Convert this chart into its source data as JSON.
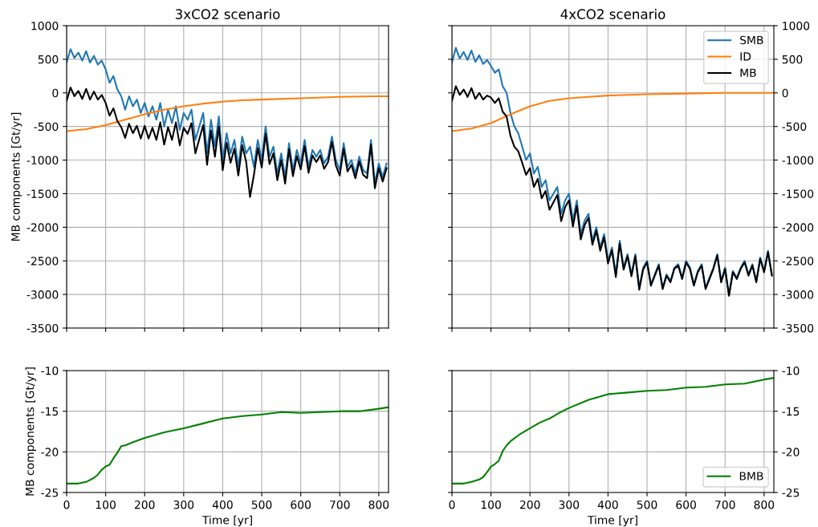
{
  "chart_data": [
    {
      "type": "line",
      "title": "3xCO2 scenario",
      "ylabel": "MB components [Gt/yr]",
      "xlim": [
        0,
        825
      ],
      "xticks": [
        0,
        100,
        200,
        300,
        400,
        500,
        600,
        700,
        800
      ],
      "ylim": [
        -3500,
        1000
      ],
      "yticks": [
        -3500,
        -3000,
        -2500,
        -2000,
        -1500,
        -1000,
        -500,
        0,
        500,
        1000
      ],
      "grid": true,
      "tick_labels": "y",
      "series": [
        {
          "color": "#1f77b4",
          "x": [
            0,
            10,
            20,
            30,
            40,
            50,
            60,
            70,
            80,
            90,
            100,
            110,
            120,
            130,
            140,
            150,
            160,
            170,
            180,
            190,
            200,
            210,
            220,
            230,
            240,
            250,
            260,
            270,
            280,
            290,
            300,
            310,
            320,
            330,
            340,
            350,
            360,
            370,
            380,
            390,
            400,
            410,
            420,
            430,
            440,
            450,
            460,
            470,
            480,
            490,
            500,
            510,
            520,
            530,
            540,
            550,
            560,
            570,
            580,
            590,
            600,
            610,
            620,
            630,
            640,
            650,
            660,
            670,
            680,
            690,
            700,
            710,
            720,
            730,
            740,
            750,
            760,
            770,
            780,
            790,
            800,
            810,
            820
          ],
          "values": [
            450,
            650,
            520,
            600,
            480,
            620,
            450,
            550,
            420,
            480,
            350,
            150,
            250,
            50,
            -50,
            -250,
            -50,
            -200,
            -100,
            -300,
            -150,
            -350,
            -200,
            -400,
            -150,
            -500,
            -250,
            -450,
            -200,
            -550,
            -300,
            -400,
            -250,
            -700,
            -500,
            -300,
            -900,
            -400,
            -800,
            -350,
            -1000,
            -600,
            -900,
            -700,
            -1100,
            -650,
            -900,
            -800,
            -1100,
            -700,
            -1000,
            -500,
            -950,
            -800,
            -1200,
            -900,
            -1250,
            -750,
            -1150,
            -850,
            -1050,
            -700,
            -1100,
            -850,
            -950,
            -850,
            -1050,
            -950,
            -650,
            -1000,
            -1150,
            -750,
            -1100,
            -1000,
            -1200,
            -950,
            -1150,
            -1200,
            -700,
            -1350,
            -1050,
            -1250,
            -1050
          ]
        },
        {
          "color": "#ff7f0e",
          "x": [
            0,
            50,
            100,
            150,
            200,
            250,
            300,
            350,
            400,
            450,
            500,
            600,
            700,
            800,
            825
          ],
          "values": [
            -570,
            -540,
            -480,
            -400,
            -320,
            -250,
            -200,
            -160,
            -130,
            -110,
            -100,
            -80,
            -60,
            -50,
            -50
          ]
        },
        {
          "color": "#000000",
          "x": [
            0,
            10,
            20,
            30,
            40,
            50,
            60,
            70,
            80,
            90,
            100,
            110,
            120,
            130,
            140,
            150,
            160,
            170,
            180,
            190,
            200,
            210,
            220,
            230,
            240,
            250,
            260,
            270,
            280,
            290,
            300,
            310,
            320,
            330,
            340,
            350,
            360,
            370,
            380,
            390,
            400,
            410,
            420,
            430,
            440,
            450,
            460,
            470,
            480,
            490,
            500,
            510,
            520,
            530,
            540,
            550,
            560,
            570,
            580,
            590,
            600,
            610,
            620,
            630,
            640,
            650,
            660,
            670,
            680,
            690,
            700,
            710,
            720,
            730,
            740,
            750,
            760,
            770,
            780,
            790,
            800,
            810,
            820
          ],
          "values": [
            -120,
            80,
            -50,
            30,
            -90,
            60,
            -100,
            20,
            -100,
            -30,
            -150,
            -340,
            -230,
            -420,
            -510,
            -670,
            -460,
            -600,
            -490,
            -680,
            -490,
            -680,
            -520,
            -700,
            -440,
            -770,
            -510,
            -700,
            -440,
            -780,
            -520,
            -610,
            -450,
            -900,
            -690,
            -480,
            -1070,
            -560,
            -950,
            -500,
            -1150,
            -740,
            -1040,
            -830,
            -1230,
            -780,
            -1020,
            -1550,
            -1220,
            -820,
            -1110,
            -610,
            -1060,
            -900,
            -1300,
            -1000,
            -1350,
            -840,
            -1240,
            -940,
            -1140,
            -790,
            -1190,
            -930,
            -1030,
            -930,
            -1130,
            -1030,
            -730,
            -1080,
            -1230,
            -830,
            -1170,
            -1070,
            -1270,
            -1020,
            -1220,
            -1270,
            -770,
            -1420,
            -1120,
            -1320,
            -1120
          ]
        }
      ]
    },
    {
      "type": "line",
      "title": "4xCO2 scenario",
      "xlim": [
        0,
        825
      ],
      "xticks": [
        0,
        100,
        200,
        300,
        400,
        500,
        600,
        700,
        800
      ],
      "ylim": [
        -3500,
        1000
      ],
      "yticks": [
        -3500,
        -3000,
        -2500,
        -2000,
        -1500,
        -1000,
        -500,
        0,
        500,
        1000
      ],
      "grid": true,
      "tick_labels": "y",
      "legend": "top right",
      "series": [
        {
          "name": "SMB",
          "color": "#1f77b4",
          "x": [
            0,
            10,
            20,
            30,
            40,
            50,
            60,
            70,
            80,
            90,
            100,
            110,
            120,
            130,
            140,
            150,
            160,
            170,
            180,
            190,
            200,
            210,
            220,
            230,
            240,
            250,
            260,
            270,
            280,
            290,
            300,
            310,
            320,
            330,
            340,
            350,
            360,
            370,
            380,
            390,
            400,
            410,
            420,
            430,
            440,
            450,
            460,
            470,
            480,
            490,
            500,
            510,
            520,
            530,
            540,
            550,
            560,
            570,
            580,
            590,
            600,
            610,
            620,
            630,
            640,
            650,
            660,
            670,
            680,
            690,
            700,
            710,
            720,
            730,
            740,
            750,
            760,
            770,
            780,
            790,
            800,
            810,
            820
          ],
          "values": [
            450,
            670,
            510,
            610,
            490,
            630,
            460,
            560,
            430,
            490,
            400,
            300,
            350,
            100,
            0,
            -300,
            -500,
            -600,
            -800,
            -1000,
            -900,
            -1200,
            -1100,
            -1400,
            -1300,
            -1600,
            -1500,
            -1400,
            -1800,
            -1600,
            -1500,
            -1900,
            -1600,
            -2100,
            -1900,
            -1800,
            -2200,
            -2000,
            -2300,
            -2100,
            -2500,
            -2300,
            -2700,
            -2200,
            -2600,
            -2400,
            -2700,
            -2400,
            -2900,
            -2600,
            -2500,
            -2850,
            -2700,
            -2550,
            -2900,
            -2700,
            -2800,
            -2600,
            -2550,
            -2750,
            -2500,
            -2600,
            -2850,
            -2650,
            -2550,
            -2900,
            -2750,
            -2600,
            -2400,
            -2800,
            -2600,
            -3000,
            -2650,
            -2750,
            -2600,
            -2500,
            -2700,
            -2550,
            -2800,
            -2450,
            -2650,
            -2350,
            -2700
          ]
        },
        {
          "name": "ID",
          "color": "#ff7f0e",
          "x": [
            0,
            50,
            100,
            150,
            200,
            250,
            300,
            350,
            400,
            500,
            600,
            700,
            800,
            825
          ],
          "values": [
            -570,
            -530,
            -450,
            -320,
            -200,
            -120,
            -80,
            -60,
            -40,
            -20,
            -10,
            0,
            0,
            0
          ]
        },
        {
          "name": "MB",
          "color": "#000000",
          "x": [
            0,
            10,
            20,
            30,
            40,
            50,
            60,
            70,
            80,
            90,
            100,
            110,
            120,
            130,
            140,
            150,
            160,
            170,
            180,
            190,
            200,
            210,
            220,
            230,
            240,
            250,
            260,
            270,
            280,
            290,
            300,
            310,
            320,
            330,
            340,
            350,
            360,
            370,
            380,
            390,
            400,
            410,
            420,
            430,
            440,
            450,
            460,
            470,
            480,
            490,
            500,
            510,
            520,
            530,
            540,
            550,
            560,
            570,
            580,
            590,
            600,
            610,
            620,
            630,
            640,
            650,
            660,
            670,
            680,
            690,
            700,
            710,
            720,
            730,
            740,
            750,
            760,
            770,
            780,
            790,
            800,
            810,
            820
          ],
          "values": [
            -120,
            100,
            -30,
            50,
            -60,
            70,
            -90,
            0,
            -100,
            -40,
            -70,
            -150,
            -80,
            -280,
            -350,
            -640,
            -800,
            -870,
            -1040,
            -1220,
            -1120,
            -1400,
            -1280,
            -1570,
            -1460,
            -1740,
            -1630,
            -1520,
            -1910,
            -1700,
            -1600,
            -1990,
            -1680,
            -2180,
            -1970,
            -1860,
            -2260,
            -2050,
            -2350,
            -2150,
            -2540,
            -2340,
            -2740,
            -2240,
            -2630,
            -2430,
            -2730,
            -2430,
            -2930,
            -2630,
            -2520,
            -2870,
            -2720,
            -2570,
            -2920,
            -2720,
            -2820,
            -2620,
            -2570,
            -2770,
            -2520,
            -2620,
            -2870,
            -2670,
            -2570,
            -2920,
            -2770,
            -2620,
            -2420,
            -2820,
            -2620,
            -3020,
            -2670,
            -2770,
            -2620,
            -2520,
            -2720,
            -2570,
            -2820,
            -2470,
            -2670,
            -2370,
            -2720
          ]
        }
      ]
    },
    {
      "type": "line",
      "xlabel": "Time [yr]",
      "ylabel": "MB components [Gt/yr]",
      "xlim": [
        0,
        825
      ],
      "xticks": [
        0,
        100,
        200,
        300,
        400,
        500,
        600,
        700,
        800
      ],
      "ylim": [
        -25,
        -10
      ],
      "yticks": [
        -25,
        -20,
        -15,
        -10
      ],
      "grid": true,
      "series": [
        {
          "color": "#008000",
          "x": [
            0,
            30,
            50,
            70,
            80,
            90,
            100,
            110,
            120,
            130,
            140,
            150,
            170,
            200,
            250,
            300,
            350,
            400,
            450,
            500,
            550,
            600,
            650,
            700,
            750,
            800,
            825
          ],
          "values": [
            -23.9,
            -23.9,
            -23.7,
            -23.2,
            -22.8,
            -22.2,
            -21.8,
            -21.6,
            -20.8,
            -20.1,
            -19.3,
            -19.2,
            -18.8,
            -18.3,
            -17.6,
            -17.1,
            -16.5,
            -15.9,
            -15.6,
            -15.4,
            -15.1,
            -15.2,
            -15.1,
            -15.0,
            -15.0,
            -14.7,
            -14.5
          ]
        }
      ]
    },
    {
      "type": "line",
      "xlabel": "Time [yr]",
      "xlim": [
        0,
        825
      ],
      "xticks": [
        0,
        100,
        200,
        300,
        400,
        500,
        600,
        700,
        800
      ],
      "ylim": [
        -25,
        -10
      ],
      "yticks": [
        -25,
        -20,
        -15,
        -10
      ],
      "grid": true,
      "legend": "bottom right",
      "series": [
        {
          "name": "BMB",
          "color": "#008000",
          "x": [
            0,
            30,
            50,
            70,
            80,
            90,
            100,
            110,
            120,
            130,
            140,
            150,
            175,
            200,
            225,
            250,
            275,
            300,
            350,
            400,
            450,
            500,
            550,
            600,
            650,
            700,
            750,
            800,
            825
          ],
          "values": [
            -23.9,
            -23.9,
            -23.7,
            -23.4,
            -23.1,
            -22.5,
            -21.8,
            -21.5,
            -21.1,
            -19.9,
            -19.2,
            -18.7,
            -17.8,
            -17.1,
            -16.4,
            -15.9,
            -15.2,
            -14.6,
            -13.6,
            -12.9,
            -12.7,
            -12.5,
            -12.4,
            -12.1,
            -12.0,
            -11.7,
            -11.6,
            -11.1,
            -10.9
          ]
        }
      ]
    }
  ]
}
